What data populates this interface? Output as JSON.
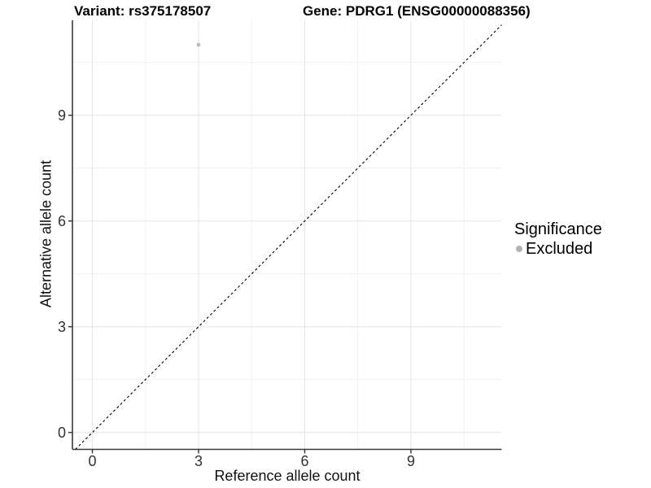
{
  "header": {
    "title_left": "Variant: rs375178507",
    "title_right": "Gene: PDRG1 (ENSG00000088356)"
  },
  "chart_data": {
    "type": "scatter",
    "title_left": "Variant: rs375178507",
    "title_right": "Gene: PDRG1 (ENSG00000088356)",
    "xlabel": "Reference allele count",
    "ylabel": "Alternative allele count",
    "xlim": [
      -0.55,
      11.6
    ],
    "ylim": [
      -0.5,
      11.7
    ],
    "x_ticks": [
      0,
      3,
      6,
      9
    ],
    "y_ticks": [
      0,
      3,
      6,
      9
    ],
    "x_minor_ticks": [
      1.5,
      4.5,
      7.5,
      10.5
    ],
    "y_minor_ticks": [
      1.5,
      4.5,
      7.5,
      10.5
    ],
    "grid": true,
    "points": [
      {
        "x": 3,
        "y": 11,
        "significance": "Excluded"
      }
    ],
    "reference_line": {
      "type": "identity",
      "slope": 1,
      "intercept": 0,
      "style": "dashed"
    },
    "legend": {
      "title": "Significance",
      "position": "right",
      "items": [
        {
          "label": "Excluded",
          "color": "#b3b3b3",
          "marker": "circle"
        }
      ]
    },
    "colors": {
      "point": "#bcbcbc",
      "grid_major": "#e4e4e4",
      "grid_minor": "#f1f1f1",
      "axis_line": "#3a3a3a",
      "tick_mark": "#333333",
      "dashed_line": "#000000",
      "text": "#333333"
    }
  }
}
